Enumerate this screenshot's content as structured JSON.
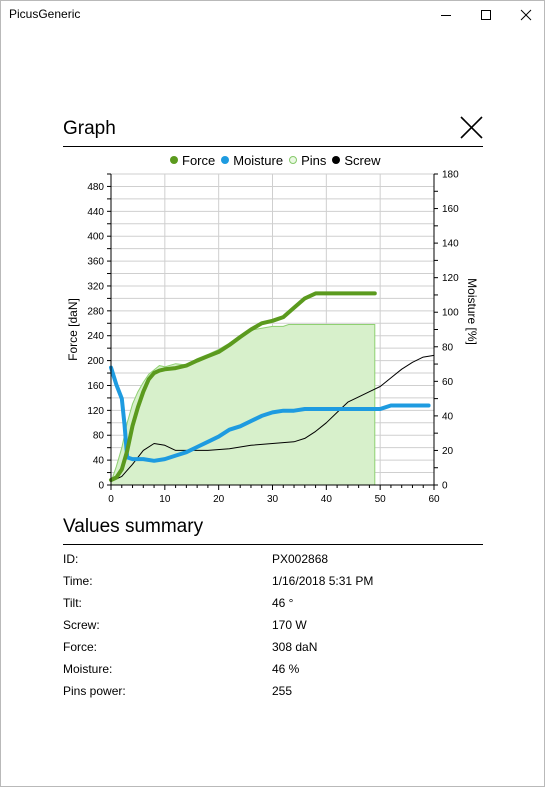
{
  "window": {
    "title": "PicusGeneric"
  },
  "graph": {
    "header": "Graph",
    "legend": [
      {
        "label": "Force",
        "color": "#5b9a1e"
      },
      {
        "label": "Moisture",
        "color": "#1e9be0"
      },
      {
        "label": "Pins",
        "color": "#a7df8f"
      },
      {
        "label": "Screw",
        "color": "#000000"
      }
    ]
  },
  "chart_data": {
    "type": "line",
    "xlabel": "",
    "ylabel_left": "Force [daN]",
    "ylabel_right": "Moisture [%]",
    "xlim": [
      0,
      60
    ],
    "ylim_left": [
      0,
      500
    ],
    "ylim_right": [
      0,
      180
    ],
    "x_ticks": [
      "0",
      "10",
      "20",
      "30",
      "40",
      "50",
      "60"
    ],
    "y_left_ticks": [
      "0",
      "40",
      "80",
      "120",
      "160",
      "200",
      "240",
      "280",
      "320",
      "360",
      "400",
      "440",
      "480"
    ],
    "y_right_ticks": [
      "0",
      "20",
      "40",
      "60",
      "80",
      "100",
      "120",
      "140",
      "160",
      "180"
    ],
    "grid": true,
    "legend_position": "top",
    "series": [
      {
        "name": "Force",
        "axis": "left",
        "color": "#5b9a1e",
        "points": [
          [
            0,
            8
          ],
          [
            1,
            12
          ],
          [
            2,
            25
          ],
          [
            3,
            55
          ],
          [
            4,
            95
          ],
          [
            5,
            125
          ],
          [
            6,
            150
          ],
          [
            7,
            170
          ],
          [
            8,
            180
          ],
          [
            9,
            184
          ],
          [
            10,
            186
          ],
          [
            12,
            188
          ],
          [
            14,
            192
          ],
          [
            16,
            200
          ],
          [
            18,
            207
          ],
          [
            20,
            214
          ],
          [
            22,
            225
          ],
          [
            24,
            238
          ],
          [
            26,
            250
          ],
          [
            28,
            260
          ],
          [
            30,
            264
          ],
          [
            32,
            270
          ],
          [
            34,
            285
          ],
          [
            36,
            300
          ],
          [
            38,
            308
          ],
          [
            40,
            308
          ],
          [
            45,
            308
          ],
          [
            49,
            308
          ]
        ]
      },
      {
        "name": "Moisture",
        "axis": "right",
        "color": "#1e9be0",
        "points": [
          [
            0,
            68
          ],
          [
            1,
            58
          ],
          [
            2,
            50
          ],
          [
            2.5,
            35
          ],
          [
            3,
            16
          ],
          [
            4,
            15
          ],
          [
            6,
            15
          ],
          [
            8,
            14
          ],
          [
            10,
            15
          ],
          [
            12,
            17
          ],
          [
            14,
            19
          ],
          [
            16,
            22
          ],
          [
            18,
            25
          ],
          [
            20,
            28
          ],
          [
            22,
            32
          ],
          [
            24,
            34
          ],
          [
            26,
            37
          ],
          [
            28,
            40
          ],
          [
            30,
            42
          ],
          [
            32,
            43
          ],
          [
            34,
            43
          ],
          [
            36,
            44
          ],
          [
            40,
            44
          ],
          [
            45,
            44
          ],
          [
            50,
            44
          ],
          [
            52,
            46
          ],
          [
            55,
            46
          ],
          [
            59,
            46
          ]
        ]
      },
      {
        "name": "Pins",
        "axis": "left",
        "color": "#a7df8f",
        "points": [
          [
            0,
            5
          ],
          [
            1,
            30
          ],
          [
            2,
            60
          ],
          [
            3,
            100
          ],
          [
            4,
            130
          ],
          [
            5,
            150
          ],
          [
            6,
            165
          ],
          [
            7,
            178
          ],
          [
            8,
            185
          ],
          [
            9,
            192
          ],
          [
            10,
            190
          ],
          [
            12,
            195
          ],
          [
            14,
            193
          ],
          [
            16,
            203
          ],
          [
            18,
            210
          ],
          [
            20,
            218
          ],
          [
            22,
            228
          ],
          [
            24,
            240
          ],
          [
            26,
            249
          ],
          [
            28,
            252
          ],
          [
            30,
            255
          ],
          [
            32,
            255
          ],
          [
            33,
            258
          ],
          [
            40,
            258
          ],
          [
            49,
            258
          ]
        ]
      },
      {
        "name": "Screw",
        "axis": "right",
        "color": "#000000",
        "points": [
          [
            0,
            2
          ],
          [
            2,
            5
          ],
          [
            4,
            12
          ],
          [
            6,
            20
          ],
          [
            8,
            24
          ],
          [
            10,
            23
          ],
          [
            12,
            20
          ],
          [
            14,
            20
          ],
          [
            18,
            20
          ],
          [
            22,
            21
          ],
          [
            26,
            23
          ],
          [
            30,
            24
          ],
          [
            34,
            25
          ],
          [
            36,
            27
          ],
          [
            38,
            31
          ],
          [
            40,
            36
          ],
          [
            42,
            42
          ],
          [
            44,
            48
          ],
          [
            46,
            51
          ],
          [
            48,
            54
          ],
          [
            50,
            57
          ],
          [
            52,
            62
          ],
          [
            54,
            67
          ],
          [
            56,
            71
          ],
          [
            58,
            74
          ],
          [
            60,
            75
          ]
        ]
      }
    ]
  },
  "summary": {
    "header": "Values summary",
    "rows": [
      {
        "label": "ID:",
        "value": "PX002868"
      },
      {
        "label": "Time:",
        "value": "1/16/2018 5:31 PM"
      },
      {
        "label": "Tilt:",
        "value": "46 °"
      },
      {
        "label": "Screw:",
        "value": "170 W"
      },
      {
        "label": "Force:",
        "value": "308 daN"
      },
      {
        "label": "Moisture:",
        "value": "46 %"
      },
      {
        "label": "Pins power:",
        "value": "255"
      }
    ]
  }
}
